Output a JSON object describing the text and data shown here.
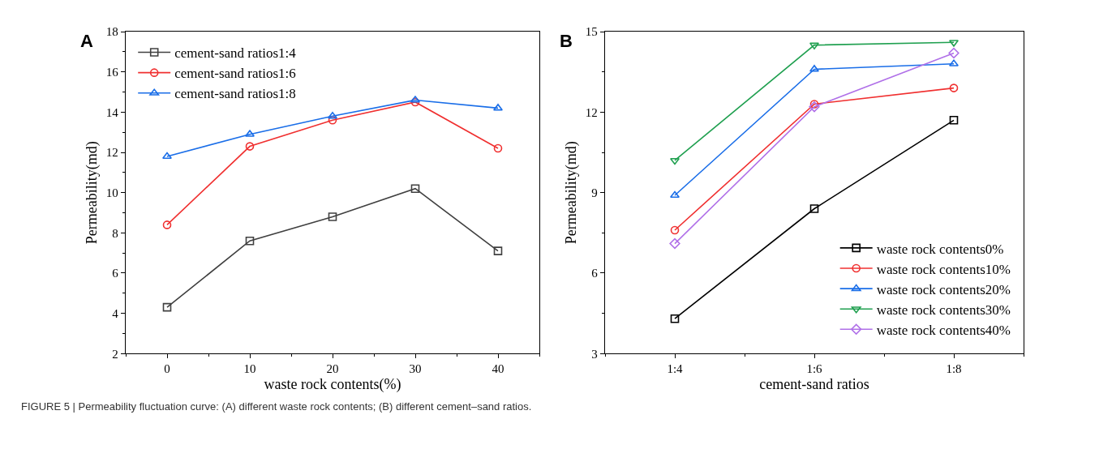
{
  "chart_data": [
    {
      "type": "line",
      "xlabel": "waste rock contents(%)",
      "ylabel": "Permeability(md)",
      "x": [
        0,
        10,
        20,
        30,
        40
      ],
      "xlim": [
        -5,
        45
      ],
      "xticks": [
        0,
        10,
        20,
        30,
        40
      ],
      "ylim": [
        2,
        18
      ],
      "yticks": [
        2,
        4,
        6,
        8,
        10,
        12,
        14,
        16,
        18
      ],
      "legend": "top left",
      "annotations": [
        "A",
        "FIGURE 5 | Permeability fluctuation curve: (A) different waste rock contents; (B) different cement–sand ratios."
      ],
      "series": [
        {
          "name": "cement-sand ratios1:4",
          "color": "#404040",
          "marker": "square",
          "values": [
            4.3,
            7.6,
            8.8,
            10.2,
            7.1
          ]
        },
        {
          "name": "cement-sand ratios1:6",
          "color": "#f03030",
          "marker": "circle",
          "values": [
            8.4,
            12.3,
            13.6,
            14.5,
            12.2
          ]
        },
        {
          "name": "cement-sand ratios1:8",
          "color": "#1a6ee8",
          "marker": "triangle",
          "values": [
            11.8,
            12.9,
            13.8,
            14.6,
            14.2
          ]
        }
      ]
    },
    {
      "type": "line",
      "xlabel": "cement-sand ratios",
      "ylabel": "Permeability(md)",
      "categories": [
        "1:4",
        "1:6",
        "1:8"
      ],
      "ylim": [
        3,
        15
      ],
      "yticks": [
        3,
        6,
        9,
        12,
        15
      ],
      "legend": "bottom right",
      "annotations": [
        "B"
      ],
      "series": [
        {
          "name": "waste rock contents0%",
          "color": "#000000",
          "marker": "square",
          "values": [
            4.3,
            8.4,
            11.7
          ]
        },
        {
          "name": "waste rock contents10%",
          "color": "#f03030",
          "marker": "circle",
          "values": [
            7.6,
            12.3,
            12.9
          ]
        },
        {
          "name": "waste rock contents20%",
          "color": "#1a6ee8",
          "marker": "triangle",
          "values": [
            8.9,
            13.6,
            13.8
          ]
        },
        {
          "name": "waste rock contents30%",
          "color": "#20a050",
          "marker": "triangle-down",
          "values": [
            10.2,
            14.5,
            14.6
          ]
        },
        {
          "name": "waste rock contents40%",
          "color": "#b070e8",
          "marker": "diamond",
          "values": [
            7.1,
            12.2,
            14.2
          ]
        }
      ]
    }
  ]
}
